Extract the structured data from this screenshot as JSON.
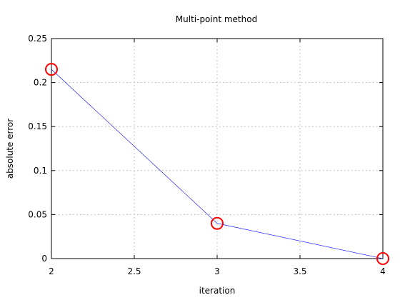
{
  "chart_data": {
    "type": "line",
    "title": "Multi-point method",
    "xlabel": "iteration",
    "ylabel": "absolute error",
    "xlim": [
      2,
      4
    ],
    "ylim": [
      0,
      0.25
    ],
    "xticks": [
      "2",
      "2.5",
      "3",
      "3.5",
      "4"
    ],
    "yticks": [
      "0",
      "0.05",
      "0.1",
      "0.15",
      "0.2",
      "0.25"
    ],
    "grid": true,
    "line_color": "#0000ff",
    "marker_color": "#ff0000",
    "series": [
      {
        "x": [
          2,
          3,
          4
        ],
        "y": [
          0.215,
          0.04,
          0.0
        ]
      }
    ]
  }
}
